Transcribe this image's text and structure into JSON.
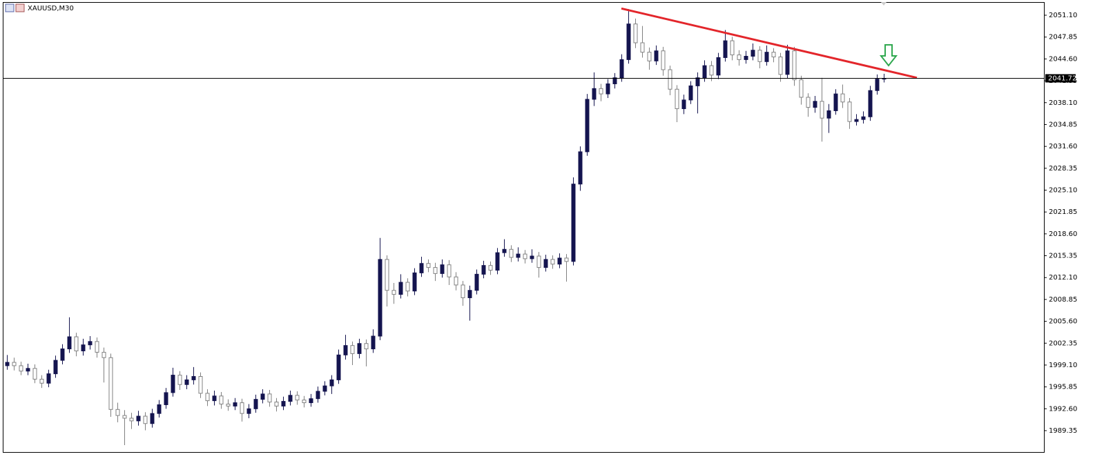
{
  "chart_data": {
    "type": "candlestick",
    "title": "XAUUSD,M30",
    "ylim": [
      1986.17,
      2053.36
    ],
    "yticks": [
      {
        "value": 2051.1,
        "label": "2051.10"
      },
      2047.85,
      {
        "value": 2044.6,
        "label": "2044.60"
      },
      2041.35,
      {
        "value": 2038.1,
        "label": "2038.10"
      },
      2034.85,
      {
        "value": 2031.6,
        "label": "2031.60"
      },
      2028.35,
      {
        "value": 2025.1,
        "label": "2025.10"
      },
      2021.85,
      {
        "value": 2018.6,
        "label": "2018.60"
      },
      2015.35,
      {
        "value": 2012.1,
        "label": "2012.10"
      },
      2008.85,
      {
        "value": 2005.6,
        "label": "2005.60"
      },
      2002.35,
      {
        "value": 1999.1,
        "label": "1999.10"
      },
      1995.85,
      {
        "value": 1992.6,
        "label": "1992.60"
      },
      1989.35
    ],
    "grid": false,
    "up_color": "#14144f",
    "down_color": "#ffffff",
    "outline_color": "#808080",
    "last_price": 2041.72,
    "trendline": {
      "color": "#e3262b",
      "points": [
        [
          89,
          2052.1
        ],
        [
          131.8,
          2041.8
        ]
      ]
    },
    "ohlc": [
      [
        1999.0,
        2000.6,
        1998.4,
        1999.5
      ],
      [
        1999.5,
        2000.2,
        1998.3,
        1999.0
      ],
      [
        1999.0,
        1999.6,
        1997.6,
        1998.2
      ],
      [
        1998.2,
        1999.3,
        1997.6,
        1998.6
      ],
      [
        1998.6,
        1999.2,
        1996.4,
        1997.0
      ],
      [
        1997.0,
        1997.6,
        1995.7,
        1996.4
      ],
      [
        1996.4,
        1998.4,
        1995.8,
        1997.8
      ],
      [
        1997.8,
        2000.5,
        1997.2,
        1999.8
      ],
      [
        1999.8,
        2002.2,
        1999.2,
        2001.5
      ],
      [
        2001.5,
        2006.2,
        2000.9,
        2003.3
      ],
      [
        2003.3,
        2003.9,
        2000.4,
        2001.2
      ],
      [
        2001.2,
        2003.0,
        2000.5,
        2002.1
      ],
      [
        2002.1,
        2003.4,
        2001.4,
        2002.6
      ],
      [
        2002.6,
        2003.2,
        2000.2,
        2001.0
      ],
      [
        2001.0,
        2001.7,
        1996.5,
        2000.2
      ],
      [
        2000.2,
        2000.8,
        1991.4,
        1992.5
      ],
      [
        1992.5,
        1993.5,
        1990.6,
        1991.6
      ],
      [
        1991.6,
        1992.4,
        1987.2,
        1991.2
      ],
      [
        1991.2,
        1992.0,
        1989.6,
        1990.8
      ],
      [
        1990.8,
        1992.3,
        1990.1,
        1991.5
      ],
      [
        1991.5,
        1992.1,
        1989.4,
        1990.4
      ],
      [
        1990.4,
        1992.6,
        1989.8,
        1991.9
      ],
      [
        1991.9,
        1993.9,
        1991.3,
        1993.2
      ],
      [
        1993.2,
        1995.7,
        1992.6,
        1995.0
      ],
      [
        1995.0,
        1998.7,
        1994.4,
        1997.6
      ],
      [
        1997.6,
        1998.2,
        1995.4,
        1996.2
      ],
      [
        1996.2,
        1997.6,
        1995.5,
        1996.9
      ],
      [
        1996.9,
        1998.8,
        1996.2,
        1997.4
      ],
      [
        1997.4,
        1998.0,
        1994.2,
        1994.9
      ],
      [
        1994.9,
        1995.5,
        1993.0,
        1993.8
      ],
      [
        1993.8,
        1995.3,
        1993.1,
        1994.5
      ],
      [
        1994.5,
        1995.1,
        1992.6,
        1993.3
      ],
      [
        1993.3,
        1994.0,
        1992.3,
        1993.0
      ],
      [
        1993.0,
        1994.2,
        1992.4,
        1993.5
      ],
      [
        1993.5,
        1994.1,
        1990.7,
        1991.9
      ],
      [
        1991.9,
        1993.3,
        1991.2,
        1992.6
      ],
      [
        1992.6,
        1994.7,
        1992.0,
        1994.0
      ],
      [
        1994.0,
        1995.5,
        1993.4,
        1994.8
      ],
      [
        1994.8,
        1995.4,
        1992.9,
        1993.6
      ],
      [
        1993.6,
        1994.2,
        1992.2,
        1993.0
      ],
      [
        1993.0,
        1994.4,
        1992.4,
        1993.7
      ],
      [
        1993.7,
        1995.3,
        1993.1,
        1994.6
      ],
      [
        1994.6,
        1995.2,
        1993.2,
        1993.9
      ],
      [
        1993.9,
        1994.5,
        1992.8,
        1993.5
      ],
      [
        1993.5,
        1994.8,
        1992.9,
        1994.1
      ],
      [
        1994.1,
        1995.9,
        1993.5,
        1995.2
      ],
      [
        1995.2,
        1996.7,
        1994.6,
        1996.0
      ],
      [
        1996.0,
        1997.6,
        1994.8,
        1996.9
      ],
      [
        1996.9,
        2001.4,
        1996.3,
        2000.6
      ],
      [
        2000.6,
        2003.6,
        1999.9,
        2002.0
      ],
      [
        2002.0,
        2002.6,
        1999.1,
        2000.8
      ],
      [
        2000.8,
        2003.0,
        2000.1,
        2002.3
      ],
      [
        2002.3,
        2002.9,
        1998.9,
        2001.5
      ],
      [
        2001.5,
        2004.4,
        2000.9,
        2003.4
      ],
      [
        2003.4,
        2018.0,
        2002.8,
        2014.8
      ],
      [
        2014.8,
        2015.4,
        2007.8,
        2010.2
      ],
      [
        2010.2,
        2011.3,
        2008.2,
        2009.6
      ],
      [
        2009.6,
        2012.6,
        2009.0,
        2011.4
      ],
      [
        2011.4,
        2012.0,
        2009.3,
        2010.1
      ],
      [
        2010.1,
        2013.5,
        2009.5,
        2012.8
      ],
      [
        2012.8,
        2015.2,
        2012.2,
        2014.2
      ],
      [
        2014.2,
        2014.8,
        2012.9,
        2013.6
      ],
      [
        2013.6,
        2014.3,
        2011.6,
        2012.7
      ],
      [
        2012.7,
        2014.8,
        2012.1,
        2014.0
      ],
      [
        2014.0,
        2014.7,
        2011.0,
        2012.2
      ],
      [
        2012.2,
        2012.9,
        2010.2,
        2011.0
      ],
      [
        2011.0,
        2011.6,
        2007.9,
        2009.1
      ],
      [
        2009.1,
        2010.9,
        2005.7,
        2010.2
      ],
      [
        2010.2,
        2013.3,
        2009.6,
        2012.6
      ],
      [
        2012.6,
        2014.6,
        2012.0,
        2013.9
      ],
      [
        2013.9,
        2014.5,
        2012.5,
        2013.2
      ],
      [
        2013.2,
        2016.5,
        2012.6,
        2015.8
      ],
      [
        2015.8,
        2017.8,
        2015.2,
        2016.3
      ],
      [
        2016.3,
        2016.9,
        2014.4,
        2015.1
      ],
      [
        2015.1,
        2016.6,
        2014.5,
        2015.6
      ],
      [
        2015.6,
        2016.2,
        2014.2,
        2014.9
      ],
      [
        2014.9,
        2016.3,
        2014.3,
        2015.3
      ],
      [
        2015.3,
        2015.9,
        2012.1,
        2013.6
      ],
      [
        2013.6,
        2015.5,
        2013.0,
        2014.8
      ],
      [
        2014.8,
        2015.4,
        2013.4,
        2014.1
      ],
      [
        2014.1,
        2015.7,
        2013.5,
        2015.0
      ],
      [
        2015.0,
        2015.6,
        2011.5,
        2014.5
      ],
      [
        2014.5,
        2027.0,
        2013.9,
        2026.0
      ],
      [
        2026.0,
        2031.6,
        2025.0,
        2030.8
      ],
      [
        2030.8,
        2039.4,
        2030.2,
        2038.6
      ],
      [
        2038.6,
        2042.6,
        2037.6,
        2040.2
      ],
      [
        2040.2,
        2040.9,
        2038.3,
        2039.4
      ],
      [
        2039.4,
        2041.6,
        2038.8,
        2040.9
      ],
      [
        2040.9,
        2042.5,
        2040.2,
        2041.8
      ],
      [
        2041.8,
        2045.3,
        2041.2,
        2044.5
      ],
      [
        2044.5,
        2052.0,
        2043.9,
        2049.8
      ],
      [
        2049.8,
        2050.6,
        2046.2,
        2047.0
      ],
      [
        2047.0,
        2049.5,
        2044.8,
        2045.6
      ],
      [
        2045.6,
        2046.3,
        2043.0,
        2044.3
      ],
      [
        2044.3,
        2046.6,
        2043.7,
        2045.8
      ],
      [
        2045.8,
        2046.4,
        2042.1,
        2043.0
      ],
      [
        2043.0,
        2043.6,
        2039.2,
        2040.1
      ],
      [
        2040.1,
        2040.7,
        2035.2,
        2037.2
      ],
      [
        2037.2,
        2039.3,
        2036.4,
        2038.5
      ],
      [
        2038.5,
        2041.3,
        2037.9,
        2040.6
      ],
      [
        2040.6,
        2042.6,
        2036.5,
        2041.8
      ],
      [
        2041.8,
        2044.4,
        2041.2,
        2043.6
      ],
      [
        2043.6,
        2044.3,
        2041.3,
        2042.2
      ],
      [
        2042.2,
        2045.5,
        2041.6,
        2044.8
      ],
      [
        2044.8,
        2048.9,
        2044.2,
        2047.3
      ],
      [
        2047.3,
        2047.9,
        2044.4,
        2045.2
      ],
      [
        2045.2,
        2045.9,
        2043.6,
        2044.5
      ],
      [
        2044.5,
        2045.8,
        2043.9,
        2045.0
      ],
      [
        2045.0,
        2046.9,
        2044.4,
        2045.9
      ],
      [
        2045.9,
        2046.5,
        2043.2,
        2044.2
      ],
      [
        2044.2,
        2046.6,
        2043.6,
        2045.6
      ],
      [
        2045.6,
        2046.2,
        2044.1,
        2044.9
      ],
      [
        2044.9,
        2045.5,
        2041.2,
        2042.3
      ],
      [
        2042.3,
        2046.7,
        2041.7,
        2045.8
      ],
      [
        2045.8,
        2046.4,
        2040.6,
        2041.5
      ],
      [
        2041.5,
        2042.1,
        2037.8,
        2038.9
      ],
      [
        2038.9,
        2039.5,
        2036.0,
        2037.4
      ],
      [
        2037.4,
        2039.1,
        2036.6,
        2038.3
      ],
      [
        2038.3,
        2041.8,
        2032.3,
        2035.8
      ],
      [
        2035.8,
        2037.9,
        2033.6,
        2036.9
      ],
      [
        2036.9,
        2040.1,
        2036.3,
        2039.4
      ],
      [
        2039.4,
        2040.8,
        2037.3,
        2038.2
      ],
      [
        2038.2,
        2038.8,
        2034.2,
        2035.3
      ],
      [
        2035.3,
        2036.4,
        2034.7,
        2035.6
      ],
      [
        2035.6,
        2036.8,
        2035.0,
        2036.0
      ],
      [
        2036.0,
        2040.6,
        2035.4,
        2039.9
      ],
      [
        2039.9,
        2042.3,
        2039.3,
        2041.6
      ],
      [
        2041.6,
        2042.4,
        2041.1,
        2041.72
      ]
    ]
  }
}
